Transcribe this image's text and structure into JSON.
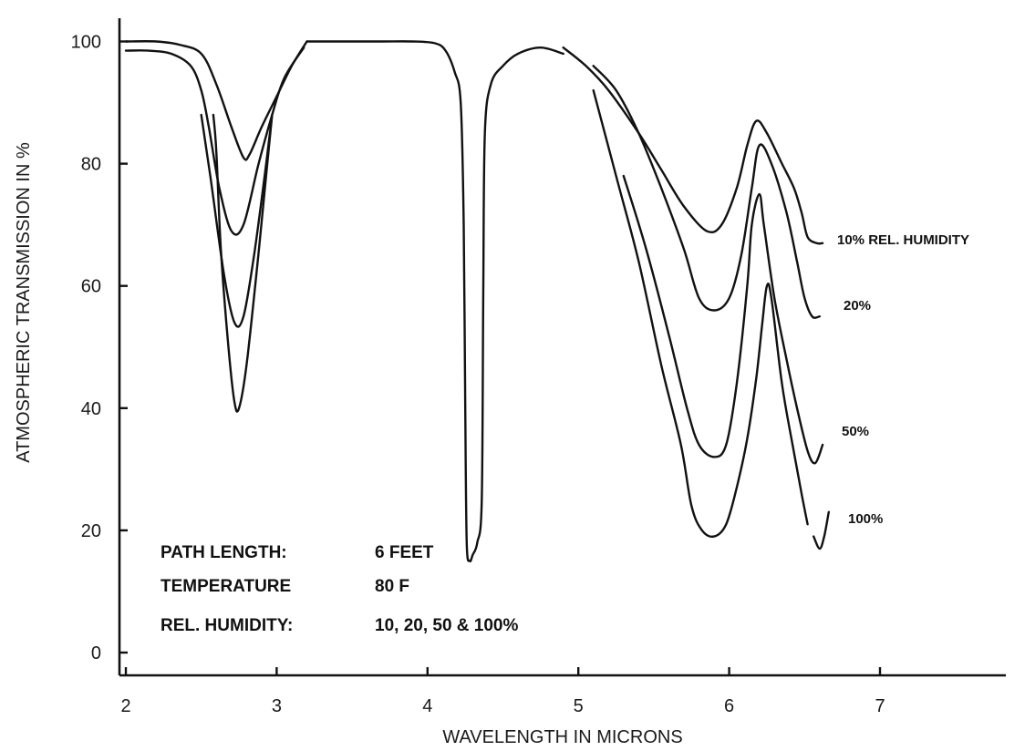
{
  "chart_data": {
    "type": "line",
    "xlabel": "WAVELENGTH IN MICRONS",
    "ylabel": "ATMOSPHERIC TRANSMISSION IN %",
    "xlim": [
      2,
      7.8
    ],
    "ylim": [
      0,
      100
    ],
    "x_ticks": [
      2,
      3,
      4,
      5,
      6,
      7
    ],
    "y_ticks": [
      0,
      20,
      40,
      60,
      80,
      100
    ],
    "grid": false,
    "series": [
      {
        "name": "10% REL. HUMIDITY",
        "segments": [
          [
            [
              2.0,
              100
            ],
            [
              2.2,
              100
            ],
            [
              2.35,
              99.5
            ],
            [
              2.5,
              98
            ],
            [
              2.6,
              93
            ],
            [
              2.7,
              86
            ],
            [
              2.78,
              81
            ],
            [
              2.82,
              81.5
            ],
            [
              2.9,
              86
            ],
            [
              3.0,
              91
            ],
            [
              3.1,
              96
            ],
            [
              3.2,
              100
            ]
          ],
          [
            [
              3.2,
              100
            ],
            [
              3.35,
              100
            ],
            [
              3.5,
              100
            ],
            [
              3.7,
              100
            ],
            [
              3.9,
              100
            ],
            [
              4.05,
              99.7
            ],
            [
              4.12,
              98.5
            ],
            [
              4.18,
              95
            ],
            [
              4.22,
              90
            ],
            [
              4.24,
              70
            ],
            [
              4.25,
              40
            ],
            [
              4.26,
              18
            ],
            [
              4.28,
              15
            ],
            [
              4.3,
              16
            ],
            [
              4.33,
              18
            ],
            [
              4.36,
              25
            ],
            [
              4.37,
              60
            ],
            [
              4.38,
              85
            ],
            [
              4.42,
              93
            ],
            [
              4.5,
              96
            ],
            [
              4.6,
              98
            ],
            [
              4.75,
              99
            ],
            [
              4.9,
              98
            ]
          ],
          [
            [
              4.9,
              99
            ],
            [
              5.05,
              96
            ],
            [
              5.2,
              92
            ],
            [
              5.4,
              85
            ],
            [
              5.55,
              79
            ],
            [
              5.7,
              73
            ],
            [
              5.85,
              69
            ],
            [
              5.95,
              70
            ],
            [
              6.05,
              76
            ],
            [
              6.12,
              83
            ],
            [
              6.18,
              87
            ],
            [
              6.25,
              85
            ],
            [
              6.35,
              80
            ],
            [
              6.43,
              76
            ],
            [
              6.48,
              72
            ],
            [
              6.52,
              68
            ],
            [
              6.58,
              67
            ],
            [
              6.62,
              67
            ]
          ]
        ]
      },
      {
        "name": "20%",
        "segments": [
          [
            [
              2.0,
              98.5
            ],
            [
              2.15,
              98.5
            ],
            [
              2.3,
              98
            ],
            [
              2.43,
              96
            ],
            [
              2.5,
              92
            ],
            [
              2.55,
              86
            ],
            [
              2.62,
              76
            ],
            [
              2.7,
              69
            ],
            [
              2.78,
              70
            ],
            [
              2.88,
              80
            ],
            [
              2.97,
              88
            ],
            [
              3.05,
              94
            ],
            [
              3.18,
              99
            ]
          ],
          [
            [
              5.1,
              96
            ],
            [
              5.25,
              92
            ],
            [
              5.4,
              85
            ],
            [
              5.55,
              76
            ],
            [
              5.7,
              66
            ],
            [
              5.8,
              58
            ],
            [
              5.9,
              56
            ],
            [
              6.0,
              58
            ],
            [
              6.08,
              65
            ],
            [
              6.15,
              76
            ],
            [
              6.2,
              83
            ],
            [
              6.28,
              80
            ],
            [
              6.38,
              72
            ],
            [
              6.45,
              64
            ],
            [
              6.5,
              58
            ],
            [
              6.55,
              55
            ],
            [
              6.6,
              55
            ]
          ]
        ]
      },
      {
        "name": "50%",
        "segments": [
          [
            [
              2.5,
              88
            ],
            [
              2.56,
              78
            ],
            [
              2.65,
              62
            ],
            [
              2.72,
              54
            ],
            [
              2.78,
              55
            ],
            [
              2.85,
              65
            ],
            [
              2.92,
              78
            ],
            [
              2.97,
              88
            ]
          ],
          [
            [
              5.3,
              78
            ],
            [
              5.45,
              66
            ],
            [
              5.6,
              52
            ],
            [
              5.72,
              40
            ],
            [
              5.8,
              34
            ],
            [
              5.9,
              32
            ],
            [
              5.98,
              34
            ],
            [
              6.05,
              44
            ],
            [
              6.12,
              60
            ],
            [
              6.15,
              70
            ],
            [
              6.2,
              75
            ],
            [
              6.23,
              70
            ],
            [
              6.3,
              58
            ],
            [
              6.38,
              48
            ],
            [
              6.45,
              40
            ],
            [
              6.52,
              33
            ],
            [
              6.57,
              31
            ],
            [
              6.62,
              34
            ]
          ]
        ]
      },
      {
        "name": "100%",
        "segments": [
          [
            [
              2.58,
              88
            ],
            [
              2.6,
              82
            ],
            [
              2.63,
              66
            ],
            [
              2.68,
              50
            ],
            [
              2.72,
              41
            ],
            [
              2.75,
              40
            ],
            [
              2.8,
              47
            ],
            [
              2.87,
              63
            ],
            [
              2.93,
              78
            ],
            [
              2.97,
              88
            ]
          ],
          [
            [
              5.1,
              92
            ],
            [
              5.25,
              78
            ],
            [
              5.4,
              64
            ],
            [
              5.55,
              47
            ],
            [
              5.68,
              34
            ],
            [
              5.75,
              24
            ],
            [
              5.82,
              20
            ],
            [
              5.9,
              19
            ],
            [
              5.98,
              21
            ],
            [
              6.05,
              27
            ],
            [
              6.12,
              35
            ],
            [
              6.18,
              45
            ],
            [
              6.22,
              54
            ],
            [
              6.25,
              60
            ],
            [
              6.28,
              58
            ],
            [
              6.35,
              44
            ],
            [
              6.42,
              34
            ],
            [
              6.48,
              26
            ],
            [
              6.52,
              21
            ]
          ],
          [
            [
              6.56,
              19
            ],
            [
              6.6,
              17
            ],
            [
              6.63,
              19
            ],
            [
              6.66,
              23
            ]
          ]
        ]
      }
    ],
    "series_labels": [
      "10% REL. HUMIDITY",
      "20%",
      "50%",
      "100%"
    ],
    "annotations": [
      {
        "label": "PATH LENGTH:",
        "value": "6 FEET"
      },
      {
        "label": "TEMPERATURE",
        "value": "80 F"
      },
      {
        "label": "REL. HUMIDITY:",
        "value": "10, 20, 50 & 100%"
      }
    ]
  }
}
